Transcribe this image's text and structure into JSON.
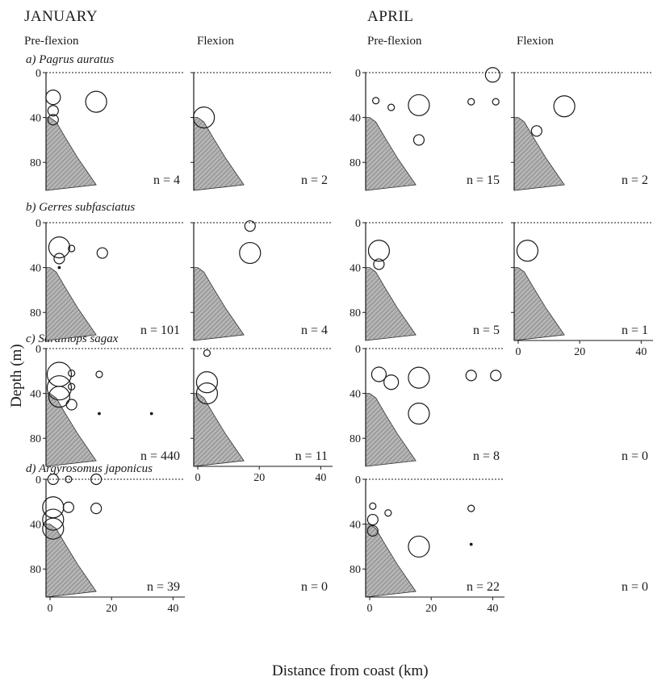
{
  "header": {
    "january": "JANUARY",
    "april": "APRIL",
    "pre_flexion": "Pre-flexion",
    "flexion": "Flexion"
  },
  "axes": {
    "xlabel": "Distance from coast (km)",
    "ylabel": "Depth (m)",
    "xticks": [
      0,
      20,
      40
    ],
    "yticks": [
      0,
      40,
      80
    ],
    "xlim": [
      0,
      42
    ],
    "ylim": [
      0,
      105
    ],
    "surface_line": "dashed at depth 0"
  },
  "colors": {
    "ink": "#1a1a1a",
    "hatch_fill": "#b5b5b5"
  },
  "chart_data": {
    "type": "scatter",
    "encoding": "bubble size proportional to larval abundance; hatched area = sea floor",
    "rows": [
      {
        "species": "a) Pagrus auratus",
        "panels": [
          {
            "month": "JANUARY",
            "stage": "Pre-flexion",
            "n": "n = 4",
            "points": [
              {
                "x": 1,
                "y": 22,
                "size": 3
              },
              {
                "x": 1,
                "y": 34,
                "size": 2
              },
              {
                "x": 1,
                "y": 42,
                "size": 2
              },
              {
                "x": 15,
                "y": 26,
                "size": 4
              }
            ]
          },
          {
            "month": "JANUARY",
            "stage": "Flexion",
            "n": "n = 2",
            "points": [
              {
                "x": 2,
                "y": 40,
                "size": 4
              }
            ]
          },
          {
            "month": "APRIL",
            "stage": "Pre-flexion",
            "n": "n = 15",
            "points": [
              {
                "x": 40,
                "y": 2,
                "size": 3
              },
              {
                "x": 2,
                "y": 25,
                "size": 1
              },
              {
                "x": 7,
                "y": 31,
                "size": 1
              },
              {
                "x": 16,
                "y": 29,
                "size": 4
              },
              {
                "x": 33,
                "y": 26,
                "size": 1
              },
              {
                "x": 41,
                "y": 26,
                "size": 1
              },
              {
                "x": 16,
                "y": 60,
                "size": 2
              }
            ]
          },
          {
            "month": "APRIL",
            "stage": "Flexion",
            "n": "n = 2",
            "points": [
              {
                "x": 15,
                "y": 30,
                "size": 4
              },
              {
                "x": 6,
                "y": 52,
                "size": 2
              }
            ]
          }
        ]
      },
      {
        "species": "b) Gerres subfasciatus",
        "panels": [
          {
            "month": "JANUARY",
            "stage": "Pre-flexion",
            "n": "n = 101",
            "points": [
              {
                "x": 3,
                "y": 22,
                "size": 4
              },
              {
                "x": 3,
                "y": 32,
                "size": 2
              },
              {
                "x": 7,
                "y": 23,
                "size": 1
              },
              {
                "x": 17,
                "y": 27,
                "size": 2
              },
              {
                "x": 3,
                "y": 40,
                "size": 0
              }
            ]
          },
          {
            "month": "JANUARY",
            "stage": "Flexion",
            "n": "n = 4",
            "points": [
              {
                "x": 17,
                "y": 3,
                "size": 2
              },
              {
                "x": 17,
                "y": 27,
                "size": 4
              }
            ]
          },
          {
            "month": "APRIL",
            "stage": "Pre-flexion",
            "n": "n = 5",
            "points": [
              {
                "x": 3,
                "y": 25,
                "size": 4
              },
              {
                "x": 3,
                "y": 37,
                "size": 2
              }
            ]
          },
          {
            "month": "APRIL",
            "stage": "Flexion",
            "n": "n = 1",
            "points": [
              {
                "x": 3,
                "y": 25,
                "size": 4
              }
            ]
          }
        ]
      },
      {
        "species": "c) Sardinops sagax",
        "panels": [
          {
            "month": "JANUARY",
            "stage": "Pre-flexion",
            "n": "n = 440",
            "points": [
              {
                "x": 3,
                "y": 23,
                "size": 5
              },
              {
                "x": 3,
                "y": 35,
                "size": 5
              },
              {
                "x": 3,
                "y": 43,
                "size": 4
              },
              {
                "x": 7,
                "y": 22,
                "size": 1
              },
              {
                "x": 7,
                "y": 34,
                "size": 1
              },
              {
                "x": 7,
                "y": 50,
                "size": 2
              },
              {
                "x": 16,
                "y": 23,
                "size": 1
              },
              {
                "x": 16,
                "y": 58,
                "size": 0
              },
              {
                "x": 33,
                "y": 58,
                "size": 0
              }
            ]
          },
          {
            "month": "JANUARY",
            "stage": "Flexion",
            "n": "n = 11",
            "points": [
              {
                "x": 3,
                "y": 4,
                "size": 1
              },
              {
                "x": 3,
                "y": 30,
                "size": 4
              },
              {
                "x": 3,
                "y": 40,
                "size": 4
              }
            ]
          },
          {
            "month": "APRIL",
            "stage": "Pre-flexion",
            "n": "n = 8",
            "points": [
              {
                "x": 3,
                "y": 23,
                "size": 3
              },
              {
                "x": 7,
                "y": 30,
                "size": 3
              },
              {
                "x": 16,
                "y": 26,
                "size": 4
              },
              {
                "x": 33,
                "y": 24,
                "size": 2
              },
              {
                "x": 41,
                "y": 24,
                "size": 2
              },
              {
                "x": 16,
                "y": 58,
                "size": 4
              }
            ]
          },
          {
            "month": "APRIL",
            "stage": "Flexion",
            "n": "n = 0",
            "points": [],
            "empty": true
          }
        ]
      },
      {
        "species": "d) Argyrosomus japonicus",
        "panels": [
          {
            "month": "JANUARY",
            "stage": "Pre-flexion",
            "n": "n = 39",
            "points": [
              {
                "x": 1,
                "y": 0,
                "size": 2
              },
              {
                "x": 6,
                "y": 0,
                "size": 1
              },
              {
                "x": 15,
                "y": 0,
                "size": 2
              },
              {
                "x": 1,
                "y": 25,
                "size": 4
              },
              {
                "x": 1,
                "y": 36,
                "size": 4
              },
              {
                "x": 1,
                "y": 44,
                "size": 4
              },
              {
                "x": 6,
                "y": 25,
                "size": 2
              },
              {
                "x": 15,
                "y": 26,
                "size": 2
              }
            ]
          },
          {
            "month": "JANUARY",
            "stage": "Flexion",
            "n": "n = 0",
            "points": [],
            "empty": true
          },
          {
            "month": "APRIL",
            "stage": "Pre-flexion",
            "n": "n = 22",
            "points": [
              {
                "x": 1,
                "y": 24,
                "size": 1
              },
              {
                "x": 1,
                "y": 36,
                "size": 2
              },
              {
                "x": 1,
                "y": 46,
                "size": 2
              },
              {
                "x": 6,
                "y": 30,
                "size": 1
              },
              {
                "x": 33,
                "y": 26,
                "size": 1
              },
              {
                "x": 33,
                "y": 58,
                "size": 0
              },
              {
                "x": 16,
                "y": 60,
                "size": 4
              }
            ]
          },
          {
            "month": "APRIL",
            "stage": "Flexion",
            "n": "n = 0",
            "points": [],
            "empty": true
          }
        ]
      }
    ],
    "sea_floor_profile": [
      [
        0,
        40
      ],
      [
        2,
        44
      ],
      [
        5,
        58
      ],
      [
        9,
        76
      ],
      [
        12,
        88
      ],
      [
        15,
        100
      ]
    ]
  }
}
